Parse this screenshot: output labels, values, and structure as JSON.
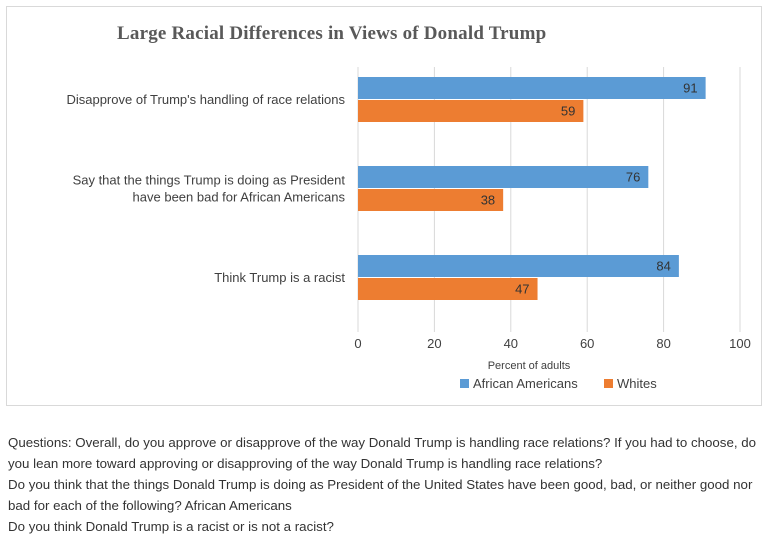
{
  "chart_data": {
    "type": "bar",
    "orientation": "horizontal",
    "title": "Large Racial Differences in Views of Donald Trump",
    "categories": [
      [
        "Disapprove of Trump's handling of race relations"
      ],
      [
        "Say that the things Trump is doing as President",
        "have been bad for African Americans"
      ],
      [
        "Think Trump is a racist"
      ]
    ],
    "series": [
      {
        "name": "African Americans",
        "values": [
          91,
          76,
          84
        ],
        "color": "#5b9bd5"
      },
      {
        "name": "Whites",
        "values": [
          59,
          38,
          47
        ],
        "color": "#ed7d31"
      }
    ],
    "xlabel": "Percent of adults",
    "xlim": [
      0,
      100
    ],
    "ticks": [
      "0",
      "20",
      "40",
      "60",
      "80",
      "100"
    ],
    "grid": true,
    "legend_position": "bottom"
  },
  "notes": [
    "Questions: Overall, do you approve or disapprove of the way Donald Trump is handling race relations? If you had to choose, do you lean more toward approving or disapproving of the way Donald Trump is handling race relations?",
    "Do you think that the things Donald Trump is doing as President of the United States have been good, bad, or neither good nor bad for each of the following? African Americans",
    "Do you think Donald Trump is a racist or is not a racist?"
  ]
}
